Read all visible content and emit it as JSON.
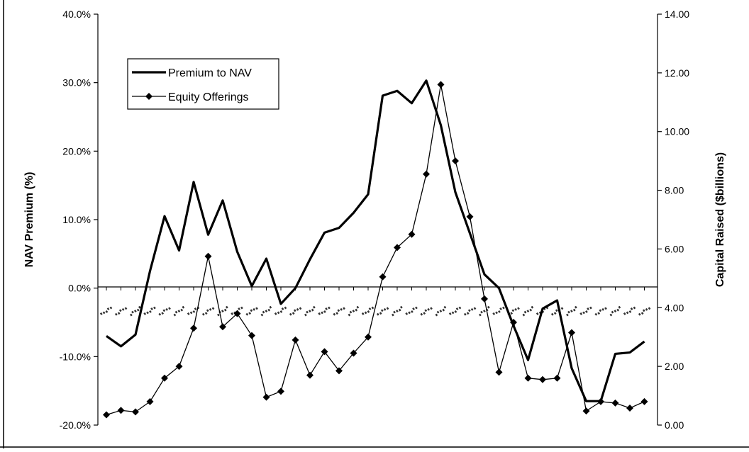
{
  "chart_data": {
    "type": "line",
    "title": "",
    "xlabel": "",
    "x_tick_labels": "illegible (rotated, distorted text along the zero line)",
    "y_left": {
      "label": "NAV Premium (%)",
      "ylim": [
        -20,
        40
      ],
      "tick_labels": [
        "40.0%",
        "30.0%",
        "20.0%",
        "10.0%",
        "0.0%",
        "-10.0%",
        "-20.0%"
      ]
    },
    "y_right": {
      "label": "Capital Raised ($billions)",
      "ylim": [
        0,
        14
      ],
      "tick_labels": [
        "14.00",
        "12.00",
        "10.00",
        "8.00",
        "6.00",
        "4.00",
        "2.00",
        "0.00"
      ]
    },
    "legend_position": "top-left",
    "series": [
      {
        "name": "Premium to NAV",
        "axis": "left",
        "style": "thick-line",
        "values": [
          -7.0,
          -8.5,
          -6.8,
          2.5,
          10.5,
          5.5,
          15.5,
          7.8,
          12.8,
          5.3,
          0.3,
          4.3,
          -2.3,
          0.0,
          4.2,
          8.1,
          8.8,
          11.0,
          13.7,
          28.1,
          28.8,
          27.0,
          30.3,
          23.8,
          14.0,
          8.0,
          2.0,
          0.0,
          -5.5,
          -10.5,
          -3.0,
          -1.8,
          -11.7,
          -16.5,
          -16.5,
          -9.6,
          -9.4,
          -7.8
        ]
      },
      {
        "name": "Equity Offerings",
        "axis": "right",
        "style": "thin-line-diamond-markers",
        "values": [
          0.35,
          0.5,
          0.45,
          0.8,
          1.6,
          2.0,
          3.3,
          5.75,
          3.35,
          3.8,
          3.05,
          0.95,
          1.15,
          2.9,
          1.7,
          2.5,
          1.85,
          2.45,
          3.0,
          5.05,
          6.05,
          6.5,
          8.55,
          11.6,
          9.0,
          7.1,
          4.3,
          1.8,
          3.5,
          1.6,
          1.55,
          1.6,
          3.15,
          0.48,
          0.8,
          0.75,
          0.58,
          0.8
        ]
      }
    ]
  },
  "legend": {
    "premium_label": "Premium to NAV",
    "offerings_label": "Equity Offerings"
  },
  "colors": {
    "line": "#000000",
    "background": "#ffffff"
  }
}
